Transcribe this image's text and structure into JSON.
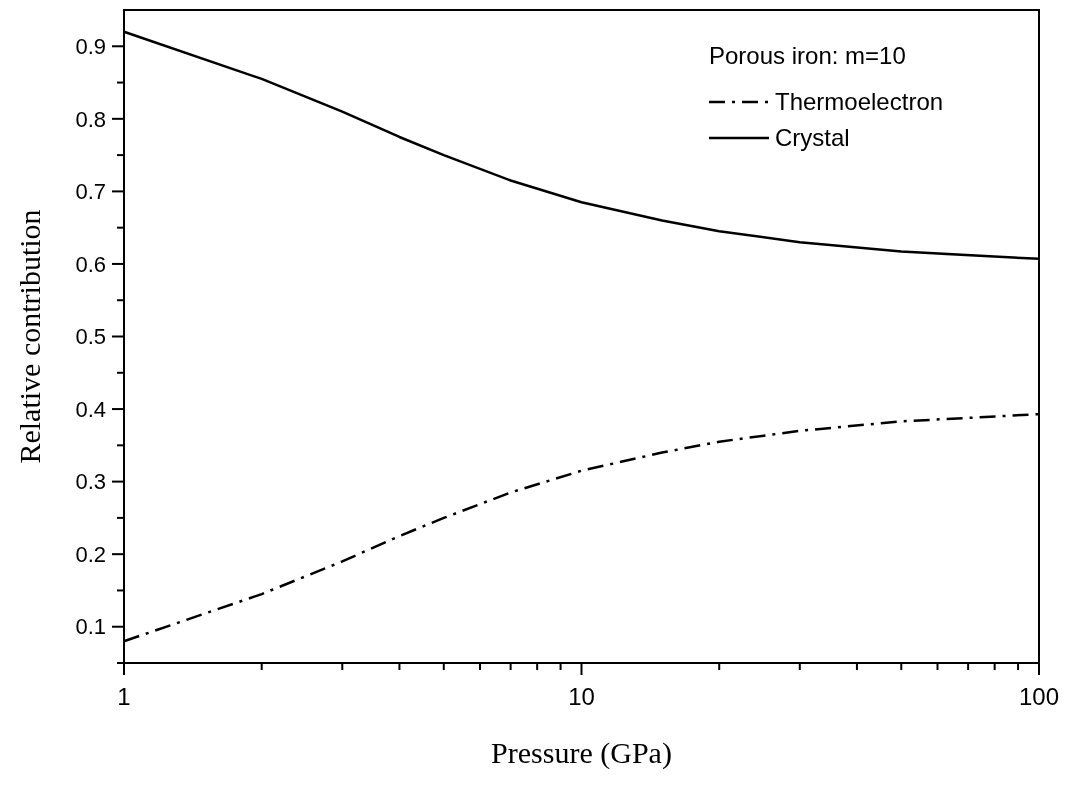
{
  "chart_data": {
    "type": "line",
    "xlabel": "Pressure (GPa)",
    "ylabel": "Relative contribution",
    "legend_title": "Porous iron: m=10",
    "log": "x",
    "x": [
      1,
      2,
      3,
      4,
      5,
      7,
      10,
      15,
      20,
      30,
      50,
      100
    ],
    "series": [
      {
        "name": "Thermoelectron",
        "color": "#000000",
        "line_style": "dashdot",
        "values": [
          0.08,
          0.145,
          0.19,
          0.225,
          0.25,
          0.285,
          0.315,
          0.34,
          0.355,
          0.37,
          0.383,
          0.393
        ]
      },
      {
        "name": "Crystal",
        "color": "#000000",
        "line_style": "solid",
        "values": [
          0.92,
          0.855,
          0.81,
          0.775,
          0.75,
          0.715,
          0.685,
          0.66,
          0.645,
          0.63,
          0.617,
          0.607
        ]
      }
    ],
    "xlim": [
      1,
      100
    ],
    "ylim": [
      0.05,
      0.95
    ],
    "xticks": [
      1,
      {
        "value": 2,
        "label": null
      },
      {
        "value": 3,
        "label": null
      },
      {
        "value": 4,
        "label": null
      },
      {
        "value": 5,
        "label": null
      },
      {
        "value": 6,
        "label": null
      },
      {
        "value": 7,
        "label": null
      },
      {
        "value": 8,
        "label": null
      },
      {
        "value": 9,
        "label": null
      },
      10,
      {
        "value": 20,
        "label": null
      },
      {
        "value": 30,
        "label": null
      },
      {
        "value": 40,
        "label": null
      },
      {
        "value": 50,
        "label": null
      },
      {
        "value": 60,
        "label": null
      },
      {
        "value": 70,
        "label": null
      },
      {
        "value": 80,
        "label": null
      },
      {
        "value": 90,
        "label": null
      },
      100
    ],
    "yticks": [
      {
        "value": 0.05,
        "label": null
      },
      {
        "value": 0.1,
        "label": "0.1"
      },
      {
        "value": 0.15,
        "label": null
      },
      {
        "value": 0.2,
        "label": "0.2"
      },
      {
        "value": 0.25,
        "label": null
      },
      {
        "value": 0.3,
        "label": "0.3"
      },
      {
        "value": 0.35,
        "label": null
      },
      {
        "value": 0.4,
        "label": "0.4"
      },
      {
        "value": 0.45,
        "label": null
      },
      {
        "value": 0.5,
        "label": "0.5"
      },
      {
        "value": 0.55,
        "label": null
      },
      {
        "value": 0.6,
        "label": "0.6"
      },
      {
        "value": 0.65,
        "label": null
      },
      {
        "value": 0.7,
        "label": "0.7"
      },
      {
        "value": 0.75,
        "label": null
      },
      {
        "value": 0.8,
        "label": "0.8"
      },
      {
        "value": 0.85,
        "label": null
      },
      {
        "value": 0.9,
        "label": "0.9"
      }
    ],
    "grid": false,
    "legend": "top right"
  }
}
